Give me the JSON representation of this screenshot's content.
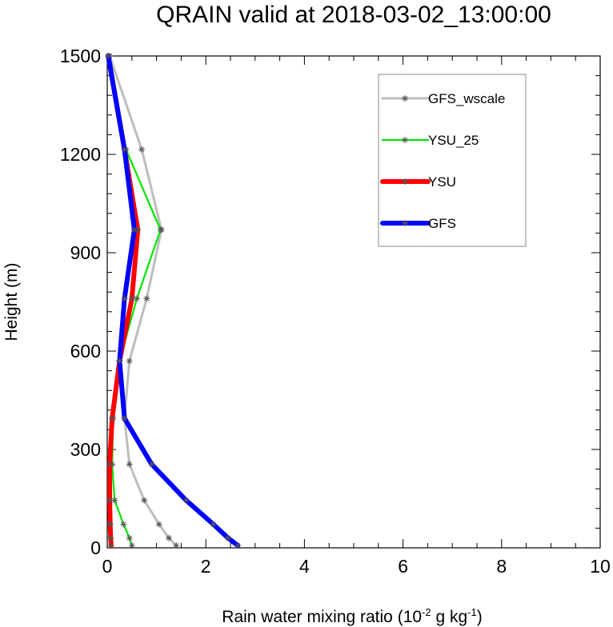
{
  "chart_data": {
    "type": "line",
    "title": "QRAIN valid at 2018-03-02_13:00:00",
    "xlabel": {
      "prefix": "Rain water mixing ratio (10",
      "exp1": "-2",
      "mid": " g kg",
      "exp2": "-1",
      "suffix": ")"
    },
    "ylabel": "Height (m)",
    "xlim": [
      0,
      10
    ],
    "ylim": [
      0,
      1500
    ],
    "xticks": [
      0,
      2,
      4,
      6,
      8,
      10
    ],
    "yticks": [
      0,
      300,
      600,
      900,
      1200,
      1500
    ],
    "x_tick_labels": [
      "0",
      "2",
      "4",
      "6",
      "8",
      "10"
    ],
    "y_tick_labels": [
      "0",
      "300",
      "600",
      "900",
      "1200",
      "1500"
    ],
    "legend_position": "top-right",
    "y": [
      7,
      30,
      72,
      145,
      255,
      395,
      570,
      760,
      970,
      1215,
      1500
    ],
    "series": [
      {
        "name": "GFS_wscale",
        "color": "#bdbdbd",
        "width": 3,
        "x": [
          1.4,
          1.25,
          1.05,
          0.75,
          0.45,
          0.35,
          0.45,
          0.8,
          1.1,
          0.7,
          0.05
        ]
      },
      {
        "name": "YSU_25",
        "color": "#00e600",
        "width": 2.2,
        "x": [
          0.5,
          0.45,
          0.33,
          0.15,
          0.1,
          0.12,
          0.25,
          0.6,
          1.08,
          0.38,
          0.05
        ]
      },
      {
        "name": "YSU",
        "color": "#ff0000",
        "width": 6,
        "x": [
          0.08,
          0.07,
          0.06,
          0.05,
          0.05,
          0.1,
          0.25,
          0.5,
          0.62,
          0.35,
          0.02
        ]
      },
      {
        "name": "GFS",
        "color": "#0000ff",
        "width": 6,
        "x": [
          2.65,
          2.45,
          2.15,
          1.6,
          0.9,
          0.35,
          0.25,
          0.35,
          0.55,
          0.35,
          0.02
        ]
      }
    ]
  }
}
